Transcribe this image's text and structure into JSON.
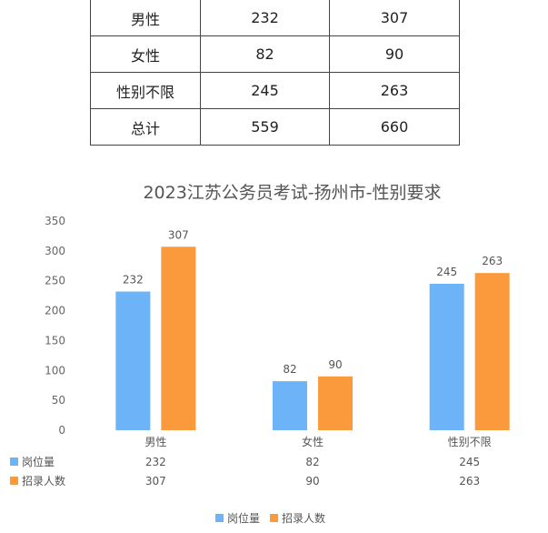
{
  "table": {
    "rows": [
      [
        "男性",
        "232",
        "307"
      ],
      [
        "女性",
        "82",
        "90"
      ],
      [
        "性别不限",
        "245",
        "263"
      ],
      [
        "总计",
        "559",
        "660"
      ]
    ]
  },
  "chart_data": {
    "type": "bar",
    "title": "2023江苏公务员考试-扬州市-性别要求",
    "categories": [
      "男性",
      "女性",
      "性别不限"
    ],
    "series": [
      {
        "name": "岗位量",
        "values": [
          232,
          82,
          245
        ],
        "color": "#6cb4f7"
      },
      {
        "name": "招录人数",
        "values": [
          307,
          90,
          263
        ],
        "color": "#fa9a3c"
      }
    ],
    "ylim": [
      0,
      350
    ],
    "yticks": [
      0,
      50,
      100,
      150,
      200,
      250,
      300,
      350
    ],
    "grid": false,
    "data_table": true,
    "legend": "bottom-center"
  }
}
